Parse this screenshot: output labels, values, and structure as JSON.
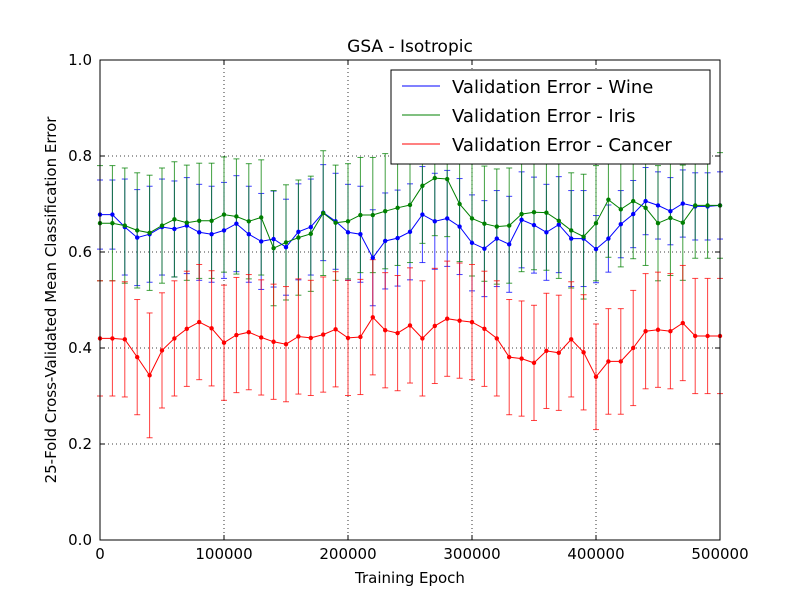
{
  "chart_data": {
    "type": "line",
    "title": "GSA - Isotropic",
    "xlabel": "Training Epoch",
    "ylabel": "25-Fold Cross-Validated Mean Classification Error",
    "xlim": [
      0,
      500000
    ],
    "ylim": [
      0.0,
      1.0
    ],
    "grid": true,
    "legend_position": "top-right",
    "x_ticks": [
      0,
      100000,
      200000,
      300000,
      400000,
      500000
    ],
    "x_tick_labels": [
      "0",
      "100000",
      "200000",
      "300000",
      "400000",
      "500000"
    ],
    "y_ticks": [
      0.0,
      0.2,
      0.4,
      0.6,
      0.8,
      1.0
    ],
    "y_tick_labels": [
      "0.0",
      "0.2",
      "0.4",
      "0.6",
      "0.8",
      "1.0"
    ],
    "x": [
      0,
      10000,
      20000,
      30000,
      40000,
      50000,
      60000,
      70000,
      80000,
      90000,
      100000,
      110000,
      120000,
      130000,
      140000,
      150000,
      160000,
      170000,
      180000,
      190000,
      200000,
      210000,
      220000,
      230000,
      240000,
      250000,
      260000,
      270000,
      280000,
      290000,
      300000,
      310000,
      320000,
      330000,
      340000,
      350000,
      360000,
      370000,
      380000,
      390000,
      400000,
      410000,
      420000,
      430000,
      440000,
      450000,
      460000,
      470000,
      480000,
      490000,
      500000
    ],
    "series": [
      {
        "name": "Validation Error - Wine",
        "color": "#0000ff",
        "values": [
          0.678,
          0.678,
          0.652,
          0.63,
          0.637,
          0.652,
          0.648,
          0.655,
          0.641,
          0.637,
          0.645,
          0.659,
          0.637,
          0.622,
          0.627,
          0.61,
          0.642,
          0.652,
          0.682,
          0.664,
          0.641,
          0.637,
          0.588,
          0.623,
          0.629,
          0.642,
          0.678,
          0.664,
          0.67,
          0.653,
          0.619,
          0.607,
          0.628,
          0.616,
          0.667,
          0.656,
          0.641,
          0.657,
          0.628,
          0.628,
          0.606,
          0.628,
          0.658,
          0.679,
          0.706,
          0.697,
          0.685,
          0.701,
          0.695,
          0.695,
          0.697
        ],
        "err": [
          0.072,
          0.072,
          0.1,
          0.1,
          0.1,
          0.1,
          0.1,
          0.1,
          0.1,
          0.1,
          0.1,
          0.1,
          0.1,
          0.1,
          0.1,
          0.1,
          0.1,
          0.1,
          0.1,
          0.1,
          0.1,
          0.1,
          0.1,
          0.1,
          0.1,
          0.1,
          0.1,
          0.1,
          0.1,
          0.1,
          0.1,
          0.1,
          0.1,
          0.1,
          0.1,
          0.1,
          0.1,
          0.1,
          0.1,
          0.1,
          0.07,
          0.07,
          0.07,
          0.07,
          0.07,
          0.07,
          0.07,
          0.07,
          0.07,
          0.07,
          0.07
        ]
      },
      {
        "name": "Validation Error - Iris",
        "color": "#008000",
        "values": [
          0.66,
          0.66,
          0.655,
          0.645,
          0.64,
          0.655,
          0.668,
          0.661,
          0.665,
          0.665,
          0.678,
          0.674,
          0.664,
          0.672,
          0.608,
          0.62,
          0.63,
          0.638,
          0.681,
          0.661,
          0.664,
          0.677,
          0.677,
          0.685,
          0.692,
          0.698,
          0.738,
          0.754,
          0.752,
          0.7,
          0.67,
          0.659,
          0.653,
          0.655,
          0.679,
          0.683,
          0.682,
          0.665,
          0.645,
          0.632,
          0.66,
          0.709,
          0.689,
          0.706,
          0.692,
          0.66,
          0.671,
          0.661,
          0.697,
          0.697,
          0.697
        ],
        "err": [
          0.12,
          0.12,
          0.12,
          0.12,
          0.12,
          0.12,
          0.12,
          0.12,
          0.12,
          0.12,
          0.12,
          0.12,
          0.12,
          0.12,
          0.12,
          0.12,
          0.12,
          0.12,
          0.13,
          0.12,
          0.12,
          0.12,
          0.12,
          0.12,
          0.12,
          0.12,
          0.12,
          0.12,
          0.12,
          0.12,
          0.12,
          0.12,
          0.12,
          0.12,
          0.12,
          0.12,
          0.12,
          0.12,
          0.12,
          0.13,
          0.12,
          0.12,
          0.12,
          0.12,
          0.12,
          0.12,
          0.12,
          0.12,
          0.11,
          0.11,
          0.11
        ]
      },
      {
        "name": "Validation Error - Cancer",
        "color": "#ff0000",
        "values": [
          0.42,
          0.42,
          0.418,
          0.381,
          0.343,
          0.395,
          0.42,
          0.44,
          0.454,
          0.441,
          0.411,
          0.427,
          0.433,
          0.422,
          0.413,
          0.408,
          0.424,
          0.421,
          0.428,
          0.439,
          0.421,
          0.423,
          0.464,
          0.437,
          0.431,
          0.447,
          0.42,
          0.446,
          0.461,
          0.457,
          0.454,
          0.44,
          0.42,
          0.381,
          0.378,
          0.369,
          0.394,
          0.39,
          0.418,
          0.391,
          0.34,
          0.372,
          0.372,
          0.4,
          0.435,
          0.438,
          0.435,
          0.452,
          0.425,
          0.425,
          0.425
        ],
        "err": [
          0.12,
          0.12,
          0.12,
          0.12,
          0.13,
          0.12,
          0.12,
          0.12,
          0.12,
          0.12,
          0.12,
          0.12,
          0.12,
          0.12,
          0.12,
          0.12,
          0.12,
          0.12,
          0.12,
          0.12,
          0.12,
          0.12,
          0.12,
          0.12,
          0.12,
          0.12,
          0.12,
          0.12,
          0.12,
          0.12,
          0.12,
          0.12,
          0.12,
          0.12,
          0.12,
          0.12,
          0.12,
          0.12,
          0.12,
          0.12,
          0.11,
          0.11,
          0.11,
          0.12,
          0.12,
          0.12,
          0.12,
          0.12,
          0.12,
          0.12,
          0.12
        ]
      }
    ]
  }
}
